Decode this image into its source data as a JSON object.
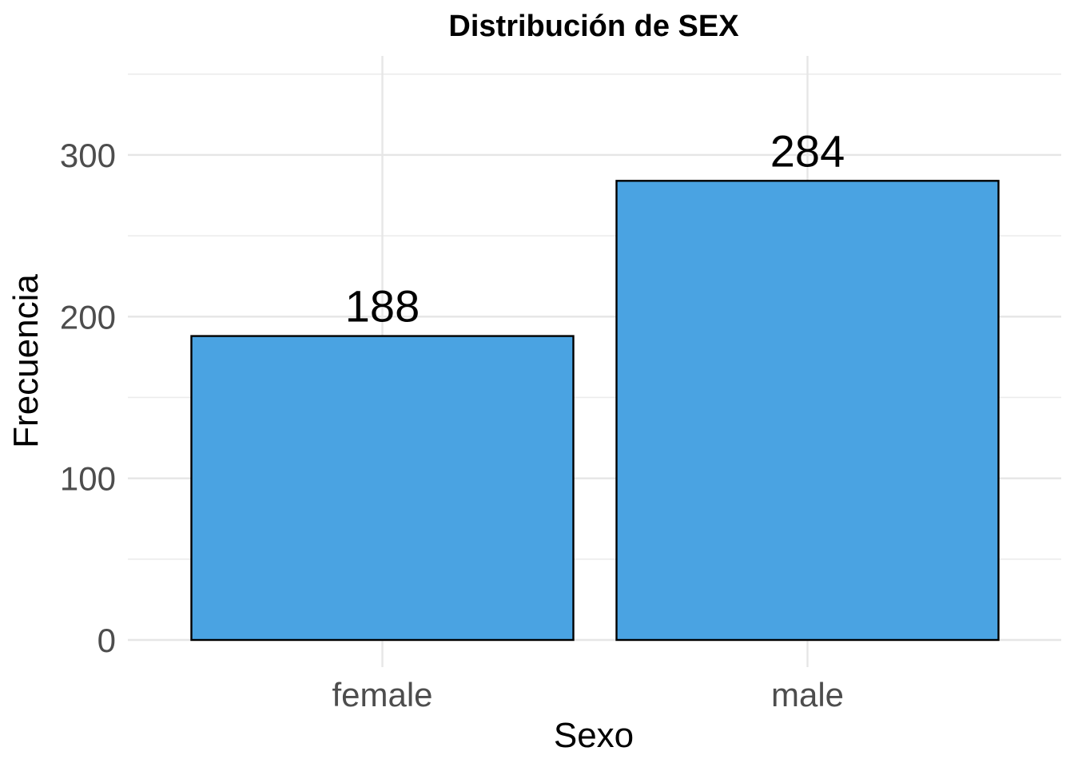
{
  "chart_data": {
    "type": "bar",
    "title": "Distribución de SEX",
    "xlabel": "Sexo",
    "ylabel": "Frecuencia",
    "categories": [
      "female",
      "male"
    ],
    "values": [
      188,
      284
    ],
    "data_labels": [
      "188",
      "284"
    ],
    "y_ticks": [
      0,
      100,
      200,
      300
    ],
    "y_tick_labels": [
      "0",
      "100",
      "200",
      "300"
    ],
    "ylim": [
      0,
      350
    ],
    "grid": true,
    "legend": "none",
    "colors": {
      "bar_fill": "#4AA3E2",
      "bar_stroke": "#000000"
    }
  }
}
